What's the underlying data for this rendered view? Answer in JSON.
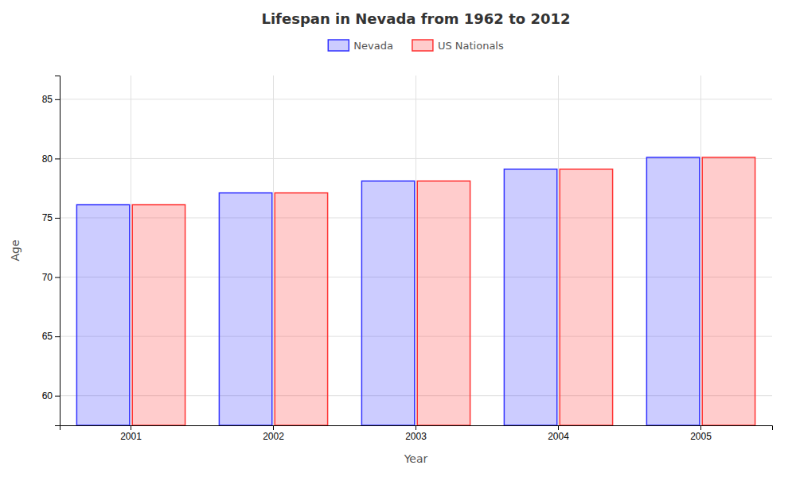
{
  "chart_data": {
    "type": "bar",
    "title": "Lifespan in Nevada from 1962 to 2012",
    "x_label": "Year",
    "y_label": "Age",
    "categories": [
      "2001",
      "2002",
      "2003",
      "2004",
      "2005"
    ],
    "series": [
      {
        "name": "Nevada",
        "color": "#3333ff",
        "values": [
          76.1,
          77.1,
          78.1,
          79.1,
          80.1
        ]
      },
      {
        "name": "US Nationals",
        "color": "#ff3333",
        "values": [
          76.1,
          77.1,
          78.1,
          79.1,
          80.1
        ]
      }
    ],
    "ylim": [
      57.5,
      87
    ],
    "yticks": [
      60,
      65,
      70,
      75,
      80,
      85
    ],
    "grid": true,
    "legend": "top"
  }
}
